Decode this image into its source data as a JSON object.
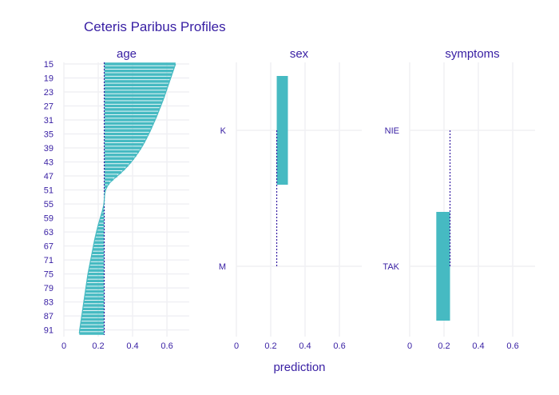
{
  "chart_data": {
    "type": "bar",
    "title": "Ceteris Paribus Profiles",
    "xlabel": "prediction",
    "baseline": 0.235,
    "xlim": [
      0,
      0.73
    ],
    "xticks": [
      "0",
      "0.2",
      "0.4",
      "0.6"
    ],
    "xtick_values": [
      0,
      0.2,
      0.4,
      0.6
    ],
    "bar_color": "#46bac2",
    "baseline_color": "#371ea3",
    "text_color": "#371ea3",
    "grid_color": "#f0f0f4",
    "panels": [
      {
        "name": "age",
        "categories": [
          "15",
          "16",
          "17",
          "18",
          "19",
          "20",
          "21",
          "22",
          "23",
          "24",
          "25",
          "26",
          "27",
          "28",
          "29",
          "30",
          "31",
          "32",
          "33",
          "34",
          "35",
          "36",
          "37",
          "38",
          "39",
          "40",
          "41",
          "42",
          "43",
          "44",
          "45",
          "46",
          "47",
          "48",
          "49",
          "50",
          "51",
          "52",
          "53",
          "54",
          "55",
          "56",
          "57",
          "58",
          "59",
          "60",
          "61",
          "62",
          "63",
          "64",
          "65",
          "66",
          "67",
          "68",
          "69",
          "70",
          "71",
          "72",
          "73",
          "74",
          "75",
          "76",
          "77",
          "78",
          "79",
          "80",
          "81",
          "82",
          "83",
          "84",
          "85",
          "86",
          "87",
          "88",
          "89",
          "90",
          "91",
          "92"
        ],
        "tick_labels": [
          "15",
          "19",
          "23",
          "27",
          "31",
          "35",
          "39",
          "43",
          "47",
          "51",
          "55",
          "59",
          "63",
          "67",
          "71",
          "75",
          "79",
          "83",
          "87",
          "91"
        ],
        "values": [
          0.65,
          0.643,
          0.636,
          0.629,
          0.622,
          0.615,
          0.608,
          0.601,
          0.594,
          0.587,
          0.58,
          0.572,
          0.564,
          0.556,
          0.548,
          0.54,
          0.531,
          0.522,
          0.513,
          0.504,
          0.494,
          0.484,
          0.473,
          0.462,
          0.45,
          0.437,
          0.423,
          0.408,
          0.392,
          0.374,
          0.355,
          0.334,
          0.311,
          0.287,
          0.266,
          0.252,
          0.243,
          0.238,
          0.236,
          0.235,
          0.233,
          0.229,
          0.224,
          0.218,
          0.212,
          0.206,
          0.2,
          0.195,
          0.19,
          0.185,
          0.18,
          0.176,
          0.172,
          0.168,
          0.164,
          0.16,
          0.156,
          0.152,
          0.148,
          0.144,
          0.14,
          0.137,
          0.134,
          0.131,
          0.128,
          0.125,
          0.122,
          0.119,
          0.116,
          0.113,
          0.11,
          0.107,
          0.104,
          0.101,
          0.098,
          0.095,
          0.092,
          0.09
        ]
      },
      {
        "name": "sex",
        "categories": [
          "K",
          "M"
        ],
        "tick_labels": [
          "K",
          "M"
        ],
        "values": [
          0.3,
          0.235
        ]
      },
      {
        "name": "symptoms",
        "categories": [
          "NIE",
          "TAK"
        ],
        "tick_labels": [
          "NIE",
          "TAK"
        ],
        "values": [
          0.235,
          0.155
        ]
      }
    ]
  }
}
